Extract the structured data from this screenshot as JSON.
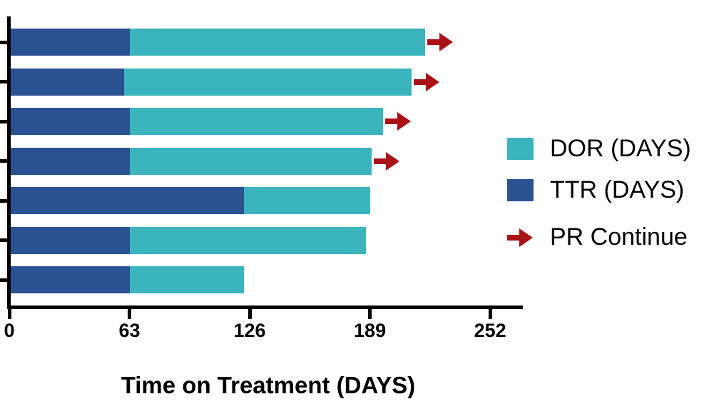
{
  "chart_data": {
    "type": "bar",
    "orientation": "horizontal",
    "stacked": true,
    "title": "",
    "xlabel": "Time on Treatment (DAYS)",
    "ylabel": "",
    "x_ticks": [
      0,
      63,
      126,
      189,
      252
    ],
    "xlim": [
      0,
      269
    ],
    "grid": false,
    "legend_position": "right",
    "rows": 7,
    "series": [
      {
        "name": "TTR (DAYS)",
        "color": "#2A5191",
        "values": [
          63,
          60,
          63,
          63,
          123,
          63,
          63
        ]
      },
      {
        "name": "DOR (DAYS)",
        "color": "#3CB4BE",
        "values": [
          155,
          151,
          133,
          127,
          66,
          124,
          60
        ]
      }
    ],
    "totals_days": [
      218,
      211,
      196,
      190,
      189,
      187,
      123
    ],
    "pr_continue_flags": [
      true,
      true,
      true,
      true,
      false,
      false,
      false
    ]
  },
  "legend": {
    "items": [
      {
        "label": "DOR (DAYS)",
        "swatch": "teal-square",
        "color": "#3CB4BE"
      },
      {
        "label": "TTR (DAYS)",
        "swatch": "blue-square",
        "color": "#2A5191"
      },
      {
        "label": "PR Continue",
        "swatch": "red-arrow",
        "color": "#AA1117"
      }
    ]
  },
  "colors": {
    "dor": "#3CB4BE",
    "ttr": "#2A5191",
    "arrow": "#AA1117",
    "axis": "#000000",
    "background": "#ffffff"
  },
  "x_axis": {
    "tick_labels": [
      "0",
      "63",
      "126",
      "189",
      "252"
    ]
  }
}
